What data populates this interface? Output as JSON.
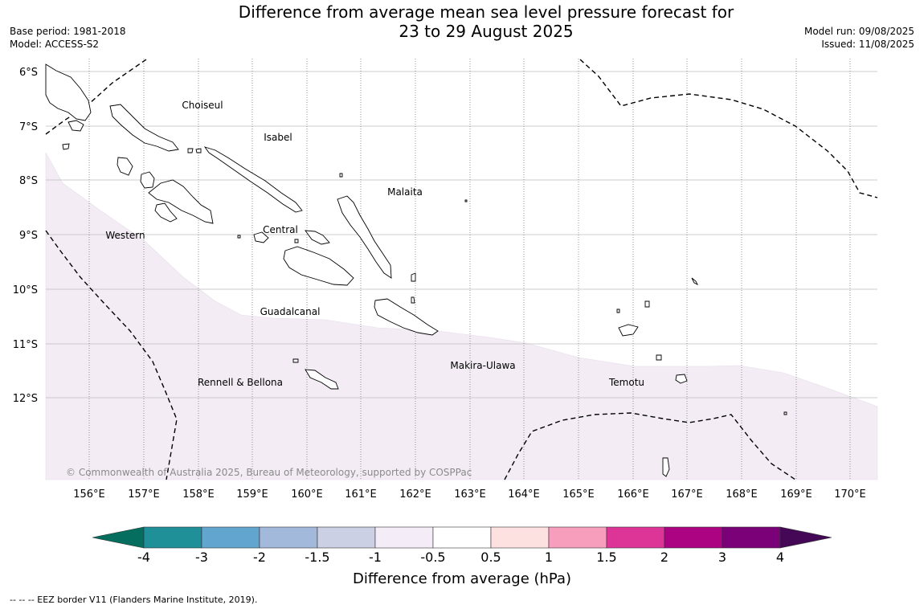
{
  "header": {
    "title_line1": "Difference from average mean sea level pressure forecast for",
    "title_line2": "23 to 29 August 2025",
    "base_period": "Base period: 1981-2018",
    "model": "Model: ACCESS-S2",
    "model_run": "Model run: 09/08/2025",
    "issued": "Issued: 11/08/2025"
  },
  "map": {
    "lat_labels": [
      "6°S",
      "7°S",
      "8°S",
      "9°S",
      "10°S",
      "11°S",
      "12°S"
    ],
    "lon_labels": [
      "156°E",
      "157°E",
      "158°E",
      "159°E",
      "160°E",
      "161°E",
      "162°E",
      "163°E",
      "164°E",
      "165°E",
      "166°E",
      "167°E",
      "168°E",
      "169°E",
      "170°E"
    ],
    "provinces": [
      "Choiseul",
      "Isabel",
      "Malaita",
      "Western",
      "Central",
      "Guadalcanal",
      "Makira-Ulawa",
      "Rennell & Bellona",
      "Temotu"
    ],
    "copyright": "© Commonwealth of Australia 2025, Bureau of Meteorology, supported by COSPPac",
    "shaded_class": "-1 to -0.5 hPa",
    "shade_color": "#f3ecf5"
  },
  "colorbar": {
    "label": "Difference from average (hPa)",
    "ticks": [
      "-4",
      "-3",
      "-2",
      "-1.5",
      "-1",
      "-0.5",
      "0.5",
      "1",
      "1.5",
      "2",
      "3",
      "4"
    ],
    "under_color": "#066e5e",
    "over_color": "#440857",
    "colors": [
      "#1f8f98",
      "#62a6cf",
      "#a3b9dc",
      "#ccd0e4",
      "#f4edf7",
      "#ffffff",
      "#fde0e0",
      "#f89ebd",
      "#dc3597",
      "#ab0381",
      "#7a0177"
    ]
  },
  "footer": {
    "eez_note": "--  --  -- EEZ border V11 (Flanders Marine Institute, 2019)."
  }
}
